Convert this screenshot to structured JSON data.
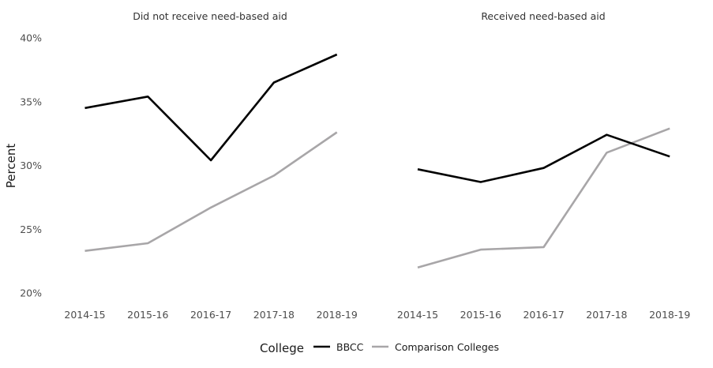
{
  "chart_data": {
    "type": "line",
    "ylabel": "Percent",
    "xlabel": "",
    "ylim": [
      20,
      40
    ],
    "y_ticks": [
      20,
      25,
      30,
      35,
      40
    ],
    "y_tick_labels": [
      "20%",
      "25%",
      "30%",
      "35%",
      "40%"
    ],
    "categories": [
      "2014-15",
      "2015-16",
      "2016-17",
      "2017-18",
      "2018-19"
    ],
    "grid": false,
    "legend": {
      "title": "College",
      "position": "bottom",
      "entries": [
        {
          "name": "BBCC",
          "color": "#000000"
        },
        {
          "name": "Comparison Colleges",
          "color": "#a8a6a8"
        }
      ]
    },
    "facets": [
      {
        "title": "Did not receive need-based aid",
        "series": [
          {
            "name": "BBCC",
            "color": "#000000",
            "values": [
              34.5,
              35.4,
              30.4,
              36.5,
              38.7
            ]
          },
          {
            "name": "Comparison Colleges",
            "color": "#a8a6a8",
            "values": [
              23.3,
              23.9,
              26.7,
              29.2,
              32.6
            ]
          }
        ]
      },
      {
        "title": "Received need-based aid",
        "series": [
          {
            "name": "BBCC",
            "color": "#000000",
            "values": [
              29.7,
              28.7,
              29.8,
              32.4,
              30.7
            ]
          },
          {
            "name": "Comparison Colleges",
            "color": "#a8a6a8",
            "values": [
              22.0,
              23.4,
              23.6,
              31.0,
              32.9
            ]
          }
        ]
      }
    ]
  }
}
